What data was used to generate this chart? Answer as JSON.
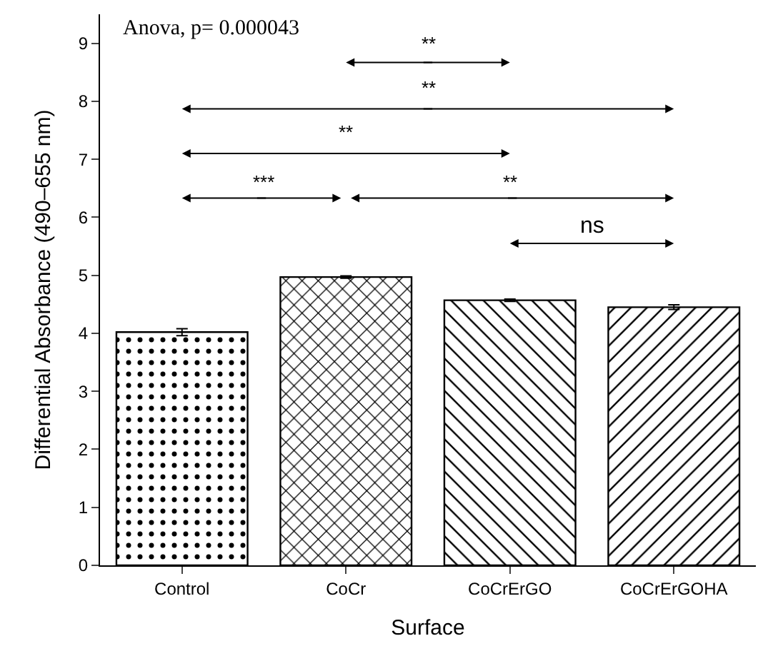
{
  "chart_data": {
    "type": "bar",
    "xlabel": "Surface",
    "ylabel": "Differential Absorbance (490–655 nm)",
    "categories": [
      "Control",
      "CoCr",
      "CoCrErGO",
      "CoCrErGOHA"
    ],
    "values": [
      4.02,
      4.97,
      4.57,
      4.45
    ],
    "errors": [
      0.06,
      0.02,
      0.02,
      0.04
    ],
    "color": "#000000",
    "ylim": [
      0,
      9.5
    ],
    "yticks": [
      0,
      1,
      2,
      3,
      4,
      5,
      6,
      7,
      8,
      9
    ],
    "annotations": [
      "Anova, p= 0.000043",
      "**",
      "**",
      "**",
      "***",
      "**",
      "ns"
    ]
  }
}
